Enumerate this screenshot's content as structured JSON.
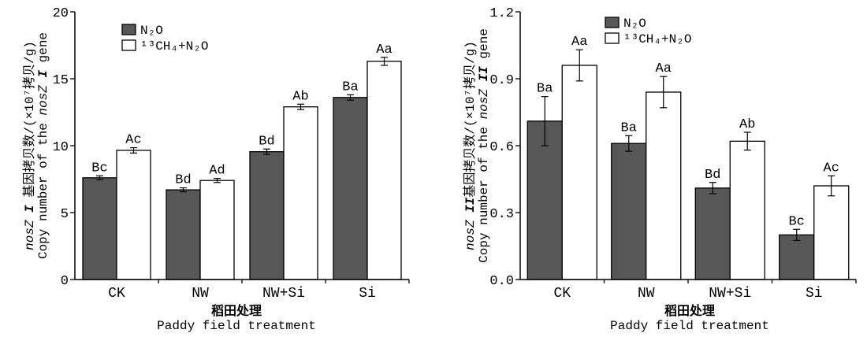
{
  "chart_data": [
    {
      "type": "bar",
      "categories": [
        "CK",
        "NW",
        "NW+Si",
        "Si"
      ],
      "series": [
        {
          "name": "N₂O",
          "color": "#575757",
          "values": [
            7.6,
            6.7,
            9.55,
            13.6
          ],
          "errors": [
            0.15,
            0.15,
            0.2,
            0.2
          ],
          "labels": [
            "Bc",
            "Bd",
            "Bd",
            "Ba"
          ]
        },
        {
          "name": "¹³CH₄+N₂O",
          "color": "#ffffff",
          "values": [
            9.65,
            7.4,
            12.9,
            16.3
          ],
          "errors": [
            0.2,
            0.15,
            0.2,
            0.3
          ],
          "labels": [
            "Ac",
            "Ad",
            "Ab",
            "Aa"
          ]
        }
      ],
      "edgecolor": "#000000",
      "ylim": [
        0,
        20
      ],
      "yticks": [
        "0",
        "5",
        "10",
        "15",
        "20"
      ],
      "ylabel": {
        "line1": {
          "gene": "nosZ",
          "numeral": "I",
          "text": "基因拷贝数/(×10⁷拷贝/g)"
        },
        "line2": {
          "prefix": "Copy number of the",
          "gene": "nosZ",
          "numeral": "I",
          "suffix": "gene"
        }
      },
      "xlabel": {
        "cn": "稻田处理",
        "en": "Paddy field treatment"
      },
      "legend": "top-left",
      "grid": false
    },
    {
      "type": "bar",
      "categories": [
        "CK",
        "NW",
        "NW+Si",
        "Si"
      ],
      "series": [
        {
          "name": "N₂O",
          "color": "#575757",
          "values": [
            0.71,
            0.61,
            0.41,
            0.2
          ],
          "errors": [
            0.11,
            0.035,
            0.025,
            0.025
          ],
          "labels": [
            "Ba",
            "Ba",
            "Bd",
            "Bc"
          ]
        },
        {
          "name": "¹³CH₄+N₂O",
          "color": "#ffffff",
          "values": [
            0.96,
            0.84,
            0.62,
            0.42
          ],
          "errors": [
            0.07,
            0.07,
            0.04,
            0.045
          ],
          "labels": [
            "Aa",
            "Aa",
            "Ab",
            "Ac"
          ]
        }
      ],
      "edgecolor": "#000000",
      "ylim": [
        0,
        1.2
      ],
      "yticks": [
        "0.0",
        "0.3",
        "0.6",
        "0.9",
        "1.2"
      ],
      "ylabel": {
        "line1": {
          "gene": "nosZ",
          "numeral": "II",
          "text": "基因拷贝数/(×10⁷拷贝/g)"
        },
        "line2": {
          "prefix": "Copy number of the",
          "gene": "nosZ",
          "numeral": "II",
          "suffix": "gene"
        }
      },
      "xlabel": {
        "cn": "稻田处理",
        "en": "Paddy field treatment"
      },
      "legend": "top-left",
      "grid": false
    }
  ]
}
